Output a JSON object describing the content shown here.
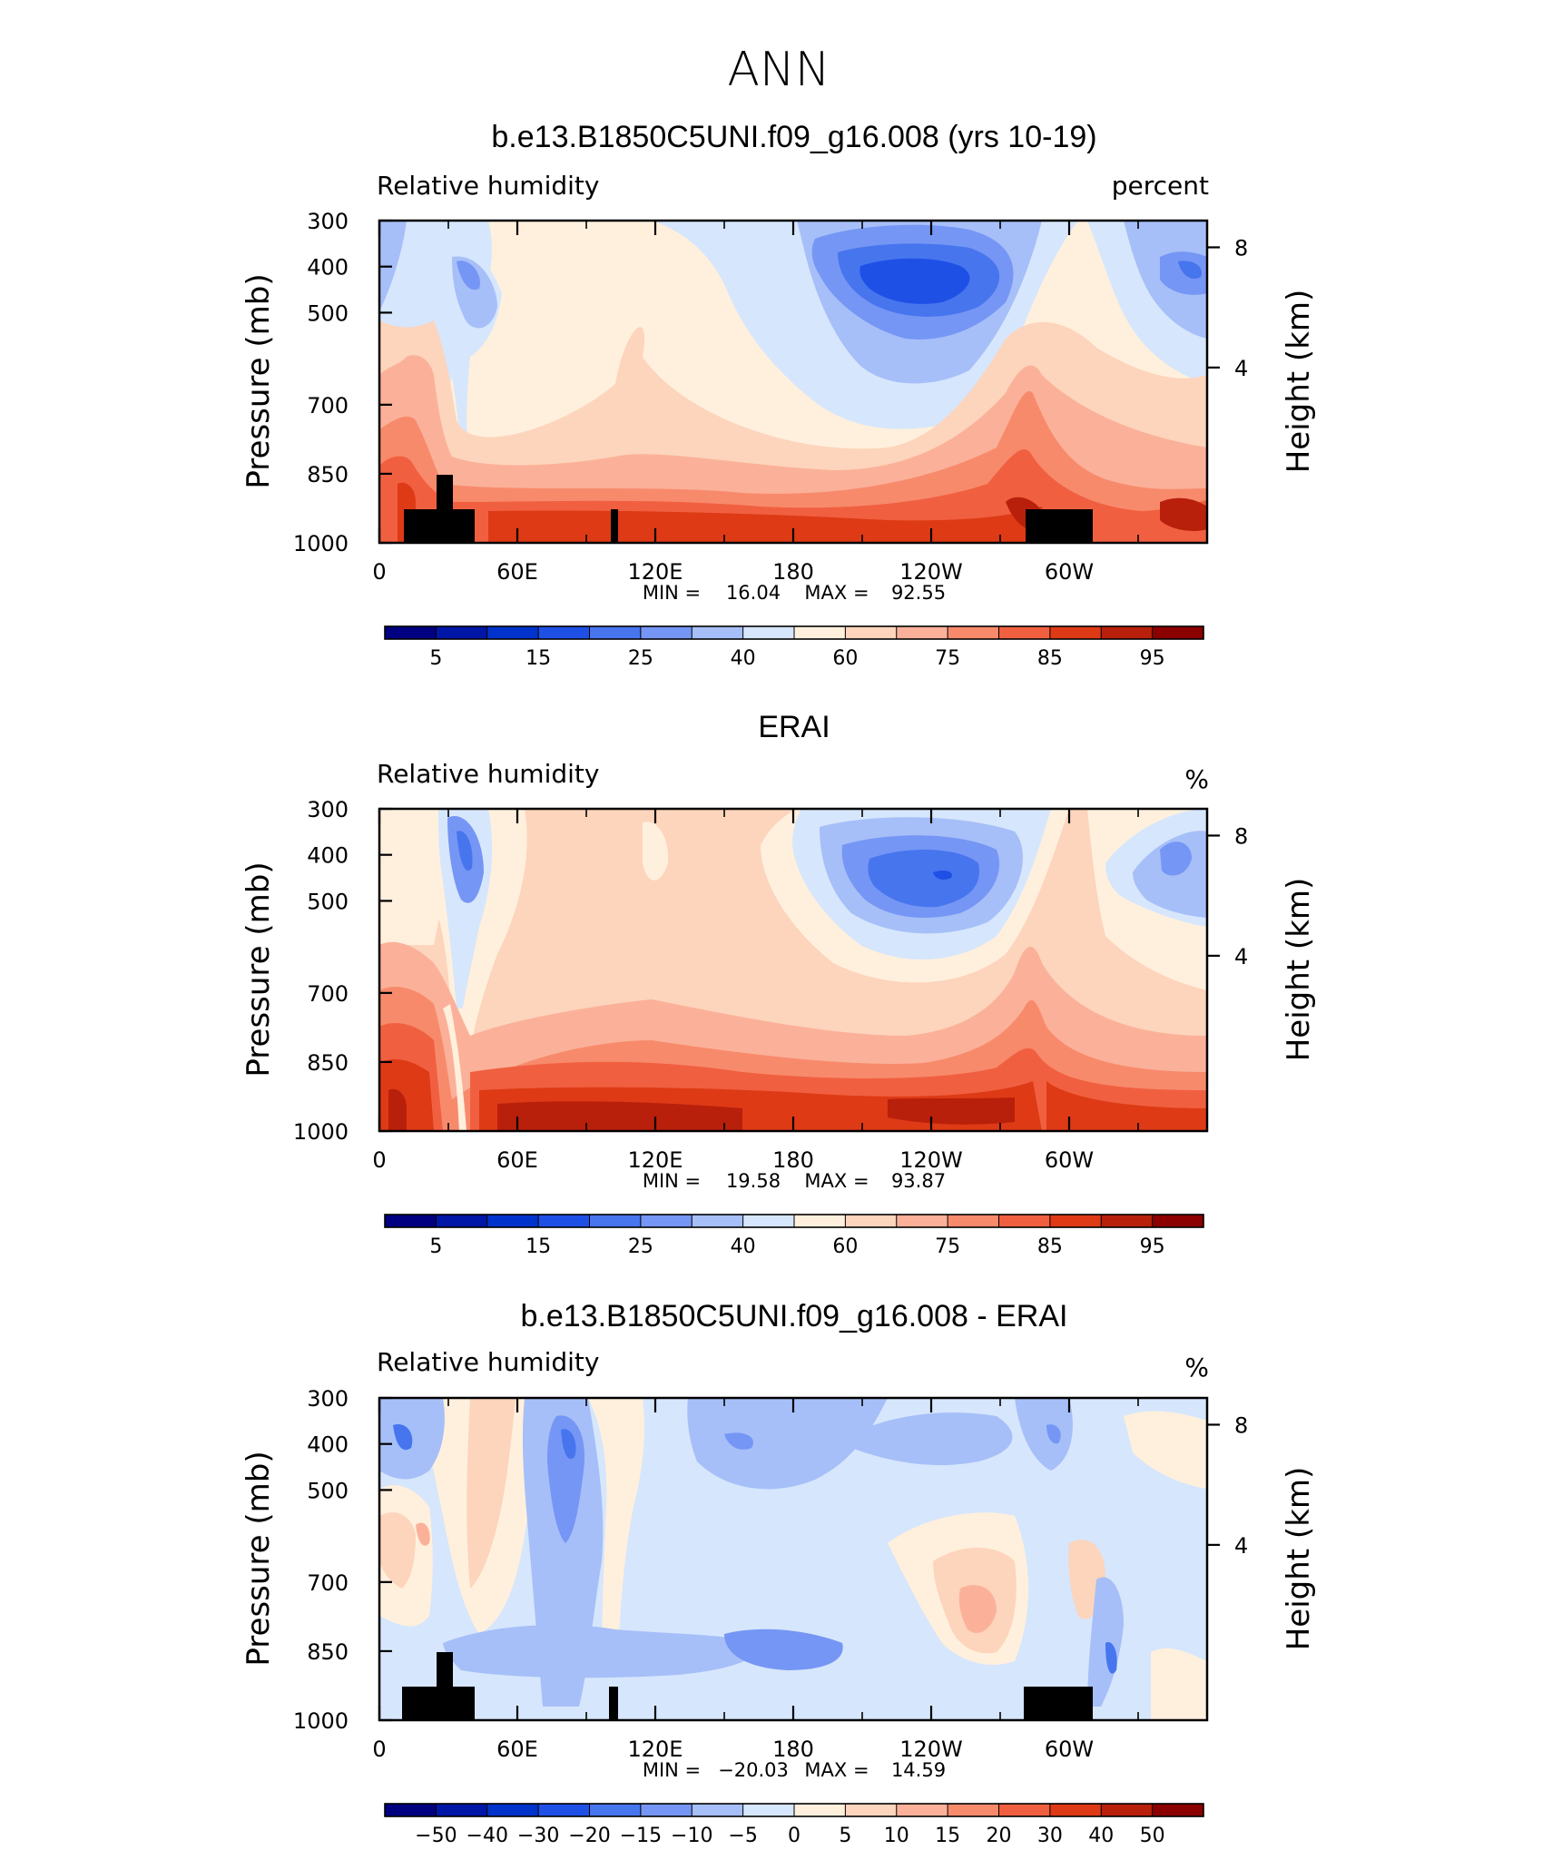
{
  "figure": {
    "title": "ANN"
  },
  "colors": {
    "abs_levels": [
      "#000080",
      "#0016a6",
      "#0033cc",
      "#1f50e6",
      "#4775ee",
      "#7596f4",
      "#a6bff8",
      "#d6e6fc",
      "#fff0dd",
      "#fdd4bc",
      "#fbb199",
      "#f88a6c",
      "#f06040",
      "#de3a16",
      "#b8200b",
      "#8b0000"
    ],
    "diff_levels": [
      "#000080",
      "#0016a6",
      "#0033cc",
      "#1f50e6",
      "#4775ee",
      "#7596f4",
      "#a6bff8",
      "#d6e6fc",
      "#fff0dd",
      "#fdd4bc",
      "#fbb199",
      "#f88a6c",
      "#f06040",
      "#de3a16",
      "#b8200b",
      "#8b0000"
    ],
    "land_mask": "#000000"
  },
  "chart_data": [
    {
      "type": "heatmap",
      "title": "b.e13.B1850C5UNI.f09_g16.008 (yrs 10-19)",
      "left_label": "Relative humidity",
      "right_label": "percent",
      "ylabel": "Pressure (mb)",
      "ylabel_right": "Height (km)",
      "x_ticks": [
        "0",
        "60E",
        "120E",
        "180",
        "120W",
        "60W"
      ],
      "y_ticks": [
        "300",
        "400",
        "500",
        "700",
        "850",
        "1000"
      ],
      "y_right_ticks": [
        "8",
        "4"
      ],
      "stats": {
        "min_label": "MIN =",
        "min": "16.04",
        "max_label": "MAX =",
        "max": "92.55"
      },
      "colorbar_labels": [
        "5",
        "15",
        "25",
        "40",
        "60",
        "75",
        "85",
        "95"
      ],
      "xlim": [
        0,
        360
      ],
      "ylim": [
        1000,
        300
      ],
      "y_right_values": [
        8,
        4
      ]
    },
    {
      "type": "heatmap",
      "title": "ERAI",
      "left_label": "Relative humidity",
      "right_label": "%",
      "ylabel": "Pressure (mb)",
      "ylabel_right": "Height (km)",
      "x_ticks": [
        "0",
        "60E",
        "120E",
        "180",
        "120W",
        "60W"
      ],
      "y_ticks": [
        "300",
        "400",
        "500",
        "700",
        "850",
        "1000"
      ],
      "y_right_ticks": [
        "8",
        "4"
      ],
      "stats": {
        "min_label": "MIN =",
        "min": "19.58",
        "max_label": "MAX =",
        "max": "93.87"
      },
      "colorbar_labels": [
        "5",
        "15",
        "25",
        "40",
        "60",
        "75",
        "85",
        "95"
      ],
      "xlim": [
        0,
        360
      ],
      "ylim": [
        1000,
        300
      ],
      "y_right_values": [
        8,
        4
      ]
    },
    {
      "type": "heatmap",
      "title": "b.e13.B1850C5UNI.f09_g16.008 - ERAI",
      "left_label": "Relative humidity",
      "right_label": "%",
      "ylabel": "Pressure (mb)",
      "ylabel_right": "Height (km)",
      "x_ticks": [
        "0",
        "60E",
        "120E",
        "180",
        "120W",
        "60W"
      ],
      "y_ticks": [
        "300",
        "400",
        "500",
        "700",
        "850",
        "1000"
      ],
      "y_right_ticks": [
        "8",
        "4"
      ],
      "stats": {
        "min_label": "MIN =",
        "min": "−20.03",
        "max_label": "MAX =",
        "max": "14.59"
      },
      "colorbar_labels": [
        "−50",
        "−40",
        "−30",
        "−20",
        "−15",
        "−10",
        "−5",
        "0",
        "5",
        "10",
        "15",
        "20",
        "30",
        "40",
        "50"
      ],
      "xlim": [
        0,
        360
      ],
      "ylim": [
        1000,
        300
      ],
      "y_right_values": [
        8,
        4
      ]
    }
  ]
}
